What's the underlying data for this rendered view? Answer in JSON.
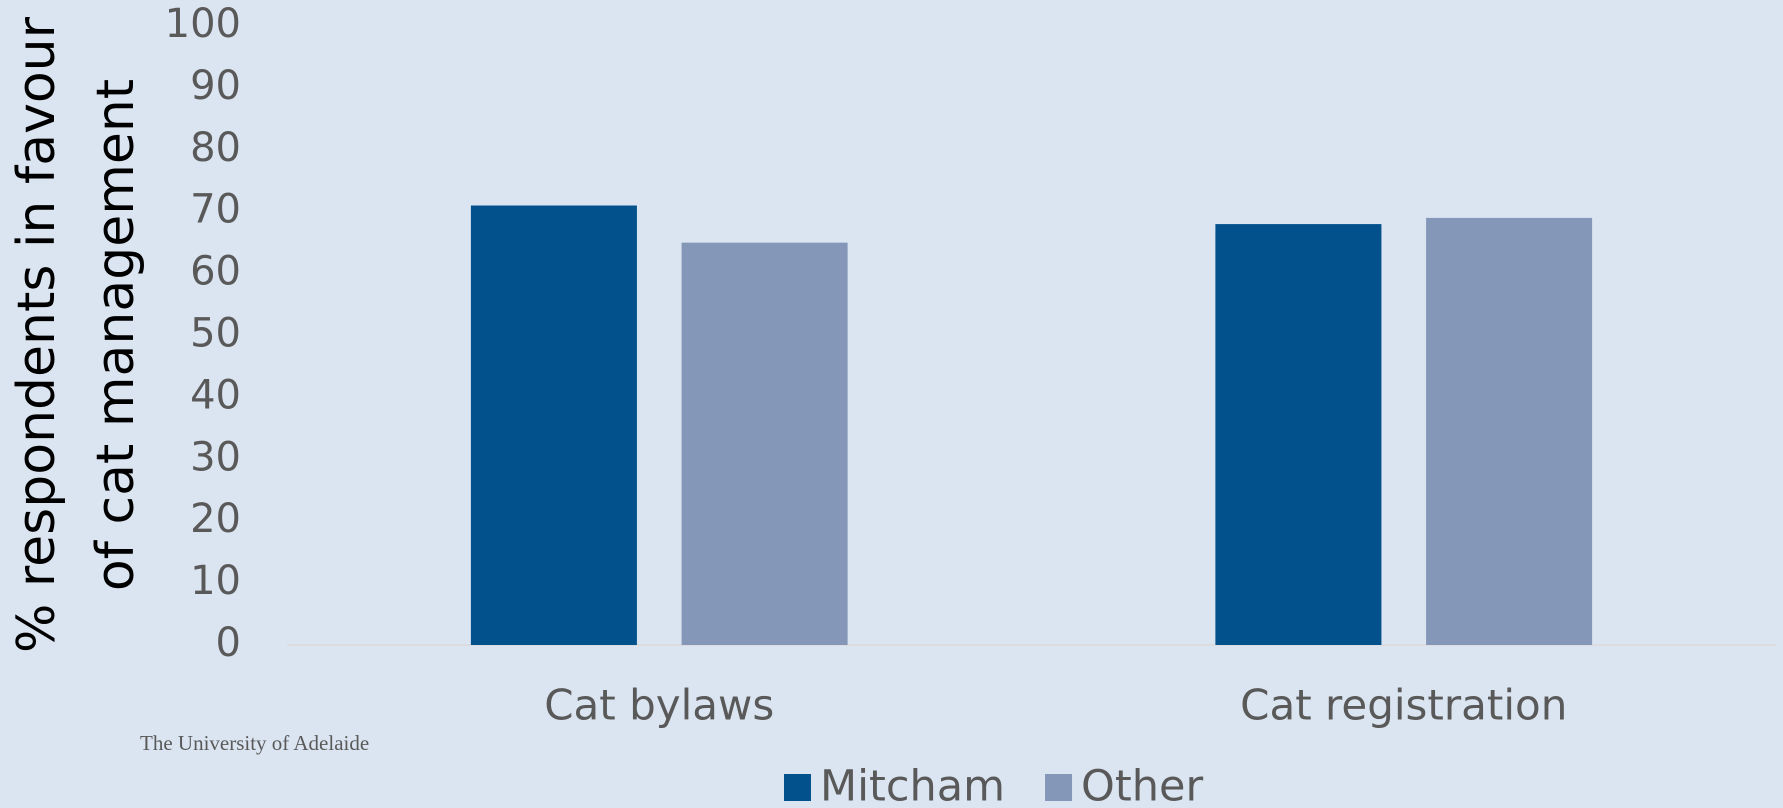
{
  "chart_data": {
    "type": "bar",
    "y_label_lines": [
      "% respondents in favour",
      "of cat management"
    ],
    "categories": [
      "Cat bylaws",
      "Cat registration"
    ],
    "series": [
      {
        "name": "Mitcham",
        "color": "#02508c",
        "values": [
          71,
          68
        ]
      },
      {
        "name": "Other",
        "color": "#8497b8",
        "values": [
          65,
          69
        ]
      }
    ],
    "ylim": [
      0,
      100
    ],
    "yticks": [
      0,
      10,
      20,
      30,
      40,
      50,
      60,
      70,
      80,
      90,
      100
    ],
    "grid": false,
    "legend": "bottom"
  },
  "footer": "The University of Adelaide"
}
